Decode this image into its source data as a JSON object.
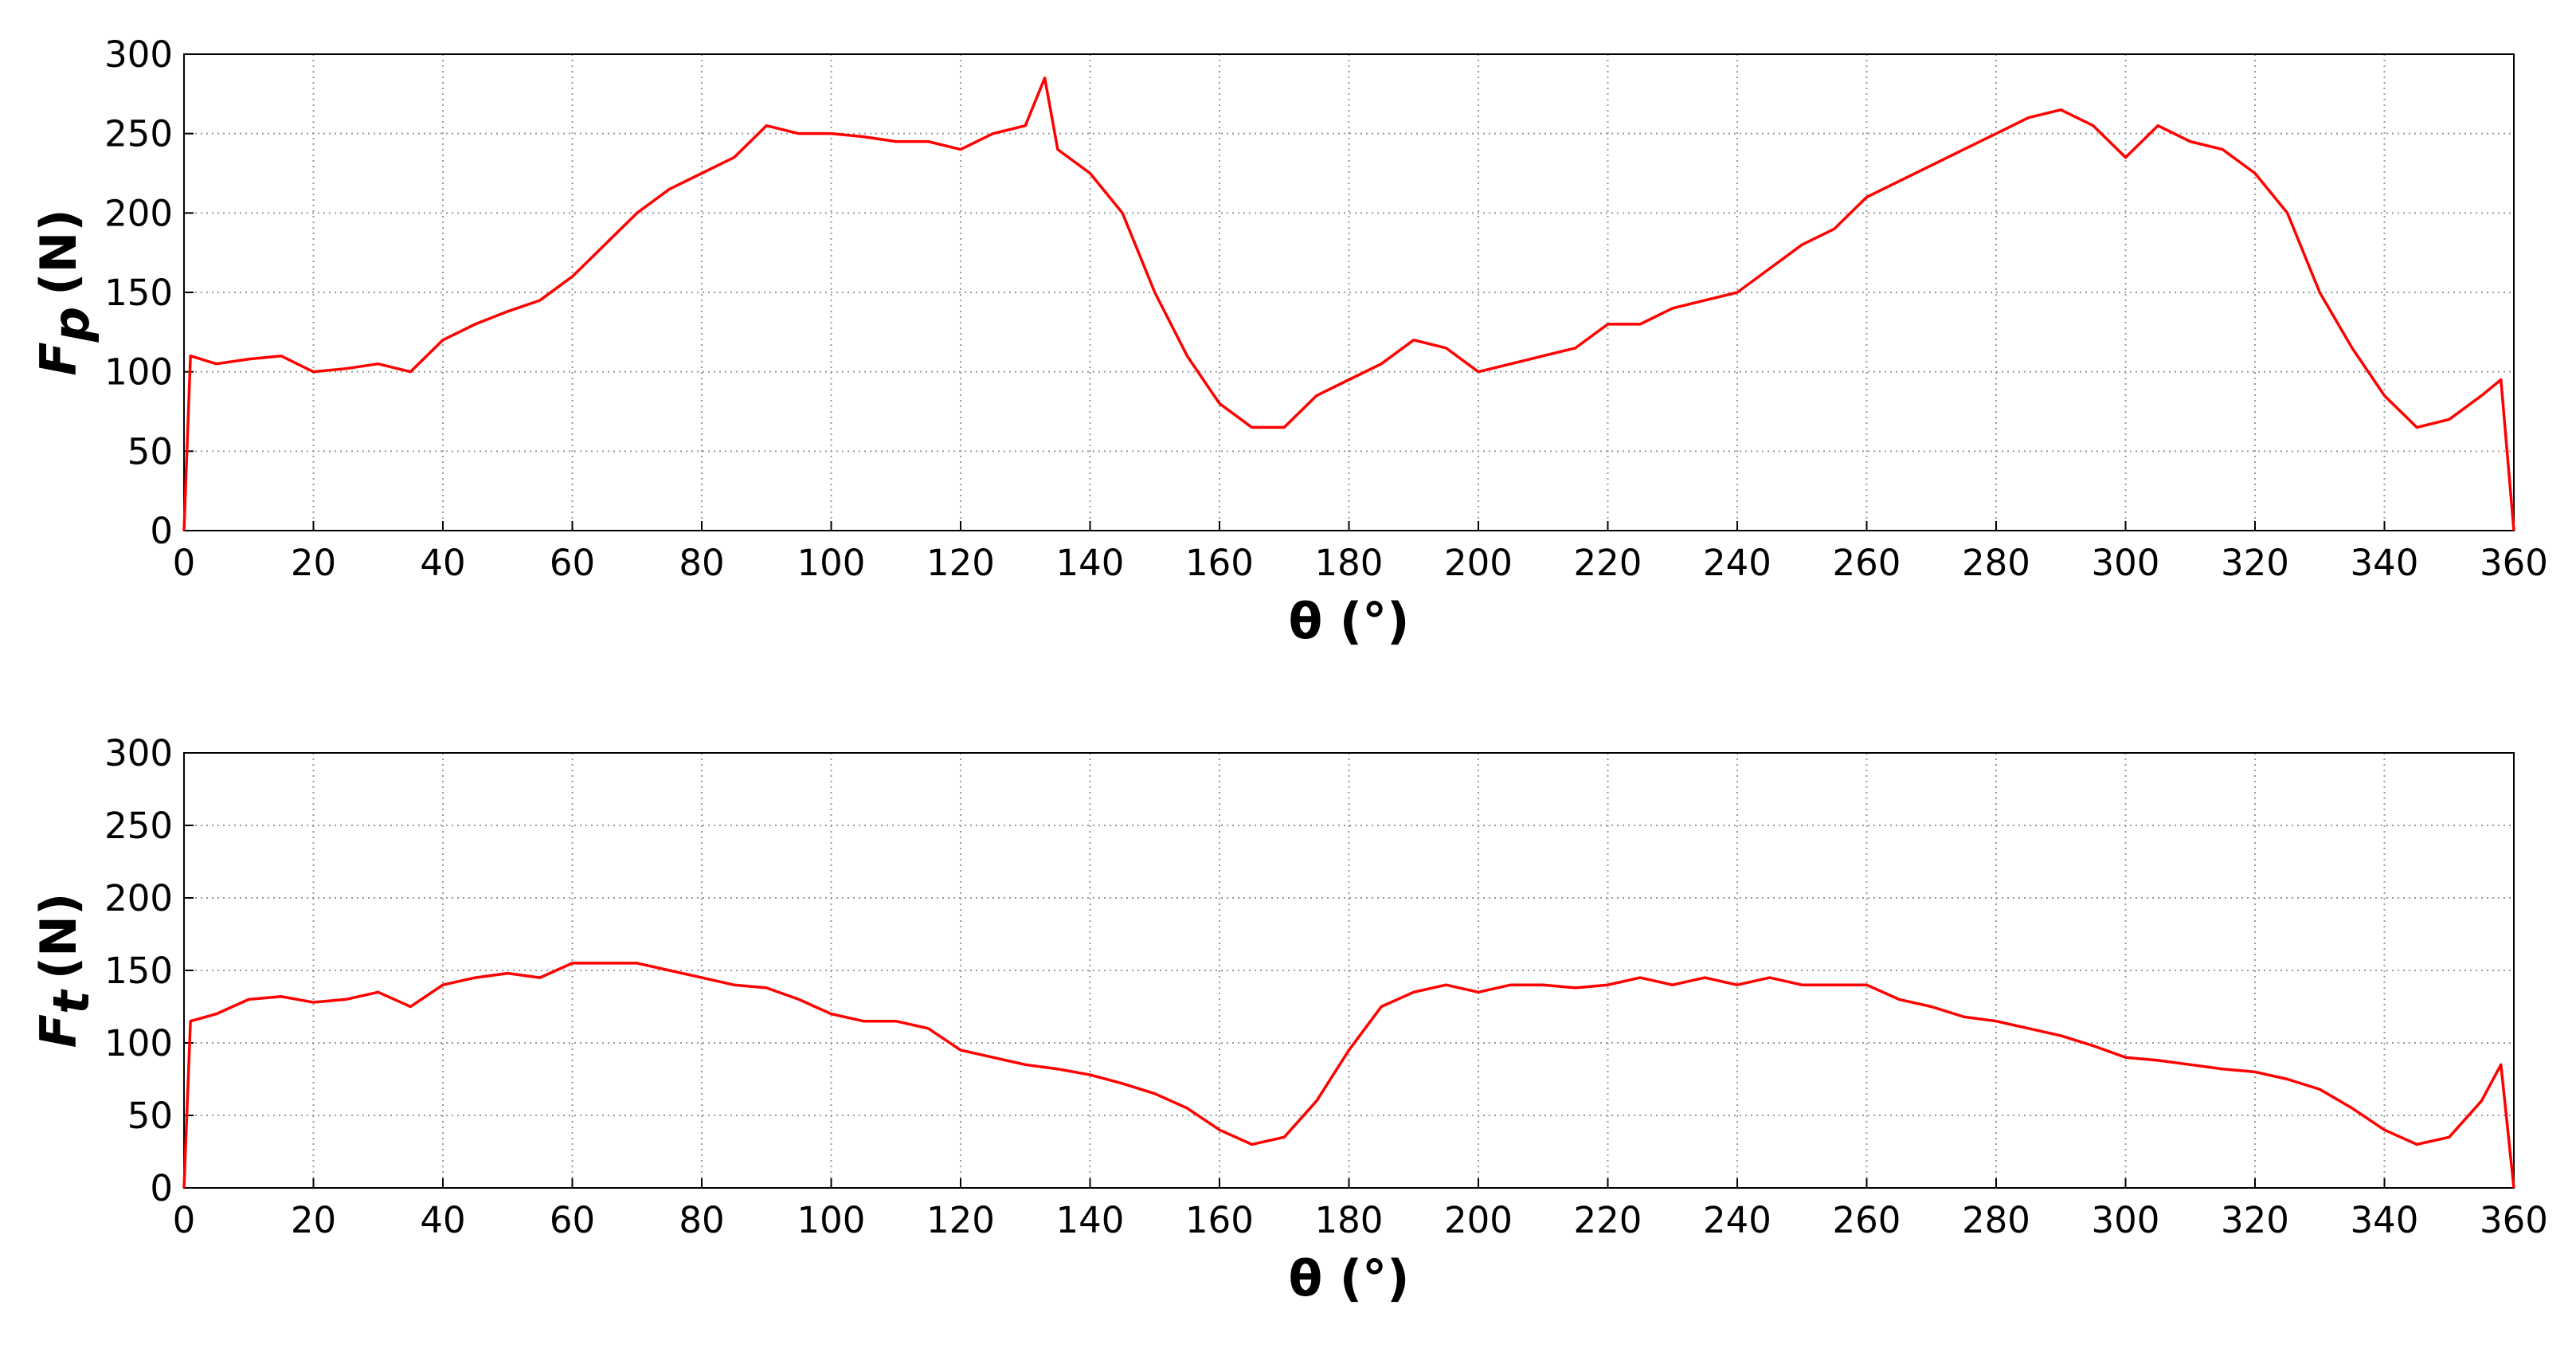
{
  "chart_data": [
    {
      "type": "line",
      "ylabel": {
        "main": "F",
        "sub": "p",
        "unit": "(N)"
      },
      "xlabel": "θ (°)",
      "color": "#ff0000",
      "xlim": [
        0,
        360
      ],
      "ylim": [
        0,
        300
      ],
      "xticks": [
        0,
        20,
        40,
        60,
        80,
        100,
        120,
        140,
        160,
        180,
        200,
        220,
        240,
        260,
        280,
        300,
        320,
        340,
        360
      ],
      "yticks": [
        0,
        50,
        100,
        150,
        200,
        250,
        300
      ],
      "grid": true,
      "x": [
        0,
        1,
        5,
        10,
        15,
        20,
        25,
        30,
        35,
        40,
        45,
        50,
        55,
        60,
        65,
        70,
        75,
        80,
        85,
        90,
        95,
        100,
        105,
        110,
        115,
        120,
        125,
        130,
        133,
        135,
        140,
        145,
        150,
        155,
        160,
        165,
        170,
        175,
        180,
        185,
        190,
        195,
        200,
        205,
        210,
        215,
        220,
        225,
        230,
        235,
        240,
        245,
        250,
        255,
        260,
        265,
        270,
        275,
        280,
        285,
        290,
        295,
        300,
        305,
        310,
        315,
        320,
        325,
        330,
        335,
        340,
        345,
        350,
        355,
        358,
        360
      ],
      "values": [
        0,
        110,
        105,
        108,
        110,
        100,
        102,
        105,
        100,
        120,
        130,
        138,
        145,
        160,
        180,
        200,
        215,
        225,
        235,
        255,
        250,
        250,
        248,
        245,
        245,
        240,
        250,
        255,
        285,
        240,
        225,
        200,
        150,
        110,
        80,
        65,
        65,
        85,
        95,
        105,
        120,
        115,
        100,
        105,
        110,
        115,
        130,
        130,
        140,
        145,
        150,
        165,
        180,
        190,
        210,
        220,
        230,
        240,
        250,
        260,
        265,
        255,
        235,
        255,
        245,
        240,
        225,
        200,
        150,
        115,
        85,
        65,
        70,
        85,
        95,
        0
      ]
    },
    {
      "type": "line",
      "ylabel": {
        "main": "F",
        "sub": "t",
        "unit": "(N)"
      },
      "xlabel": "θ (°)",
      "color": "#ff0000",
      "xlim": [
        0,
        360
      ],
      "ylim": [
        0,
        300
      ],
      "xticks": [
        0,
        20,
        40,
        60,
        80,
        100,
        120,
        140,
        160,
        180,
        200,
        220,
        240,
        260,
        280,
        300,
        320,
        340,
        360
      ],
      "yticks": [
        0,
        50,
        100,
        150,
        200,
        250,
        300
      ],
      "grid": true,
      "x": [
        0,
        1,
        5,
        10,
        15,
        20,
        25,
        30,
        35,
        40,
        45,
        50,
        55,
        60,
        65,
        70,
        75,
        80,
        85,
        90,
        95,
        100,
        105,
        110,
        115,
        120,
        125,
        130,
        135,
        140,
        145,
        150,
        155,
        160,
        165,
        170,
        175,
        180,
        185,
        190,
        195,
        200,
        205,
        210,
        215,
        220,
        225,
        230,
        235,
        240,
        245,
        250,
        255,
        260,
        265,
        270,
        275,
        280,
        285,
        290,
        295,
        300,
        305,
        310,
        315,
        320,
        325,
        330,
        335,
        340,
        345,
        350,
        355,
        358,
        360
      ],
      "values": [
        0,
        115,
        120,
        130,
        132,
        128,
        130,
        135,
        125,
        140,
        145,
        148,
        145,
        155,
        155,
        155,
        150,
        145,
        140,
        138,
        130,
        120,
        115,
        115,
        110,
        95,
        90,
        85,
        82,
        78,
        72,
        65,
        55,
        40,
        30,
        35,
        60,
        95,
        125,
        135,
        140,
        135,
        140,
        140,
        138,
        140,
        145,
        140,
        145,
        140,
        145,
        140,
        140,
        140,
        130,
        125,
        118,
        115,
        110,
        105,
        98,
        90,
        88,
        85,
        82,
        80,
        75,
        68,
        55,
        40,
        30,
        35,
        60,
        85,
        0
      ]
    }
  ]
}
